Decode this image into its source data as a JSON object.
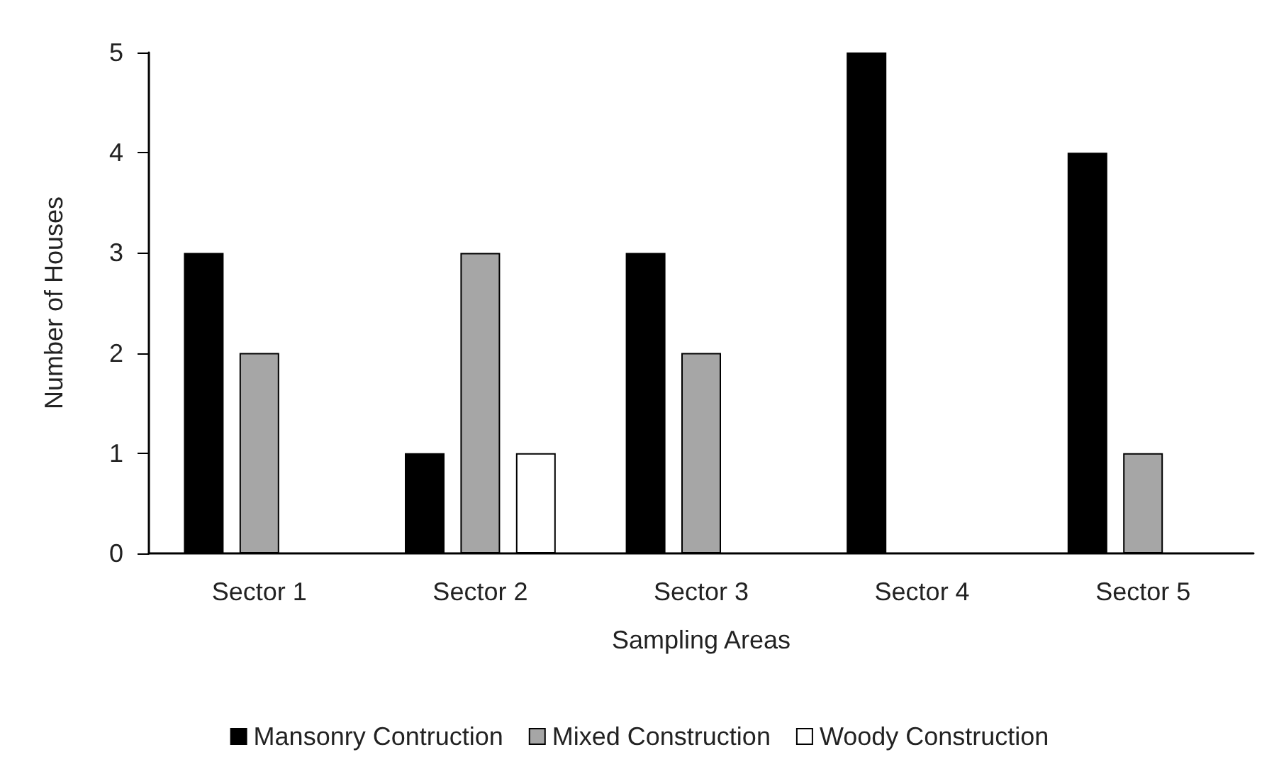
{
  "chart_data": {
    "type": "bar",
    "xlabel": "Sampling Areas",
    "ylabel": "Number of Houses",
    "categories": [
      "Sector 1",
      "Sector 2",
      "Sector 3",
      "Sector 4",
      "Sector 5"
    ],
    "series": [
      {
        "name": "Mansonry Contruction",
        "color": "#000000",
        "values": [
          3,
          1,
          3,
          5,
          4
        ]
      },
      {
        "name": "Mixed Construction",
        "color": "#a6a6a6",
        "values": [
          2,
          3,
          2,
          0,
          1
        ]
      },
      {
        "name": "Woody Construction",
        "color": "#ffffff",
        "values": [
          0,
          1,
          0,
          0,
          0
        ]
      }
    ],
    "ylim": [
      0,
      5
    ],
    "yticks": [
      0,
      1,
      2,
      3,
      4,
      5
    ],
    "grid": false,
    "legend": "bottom"
  }
}
